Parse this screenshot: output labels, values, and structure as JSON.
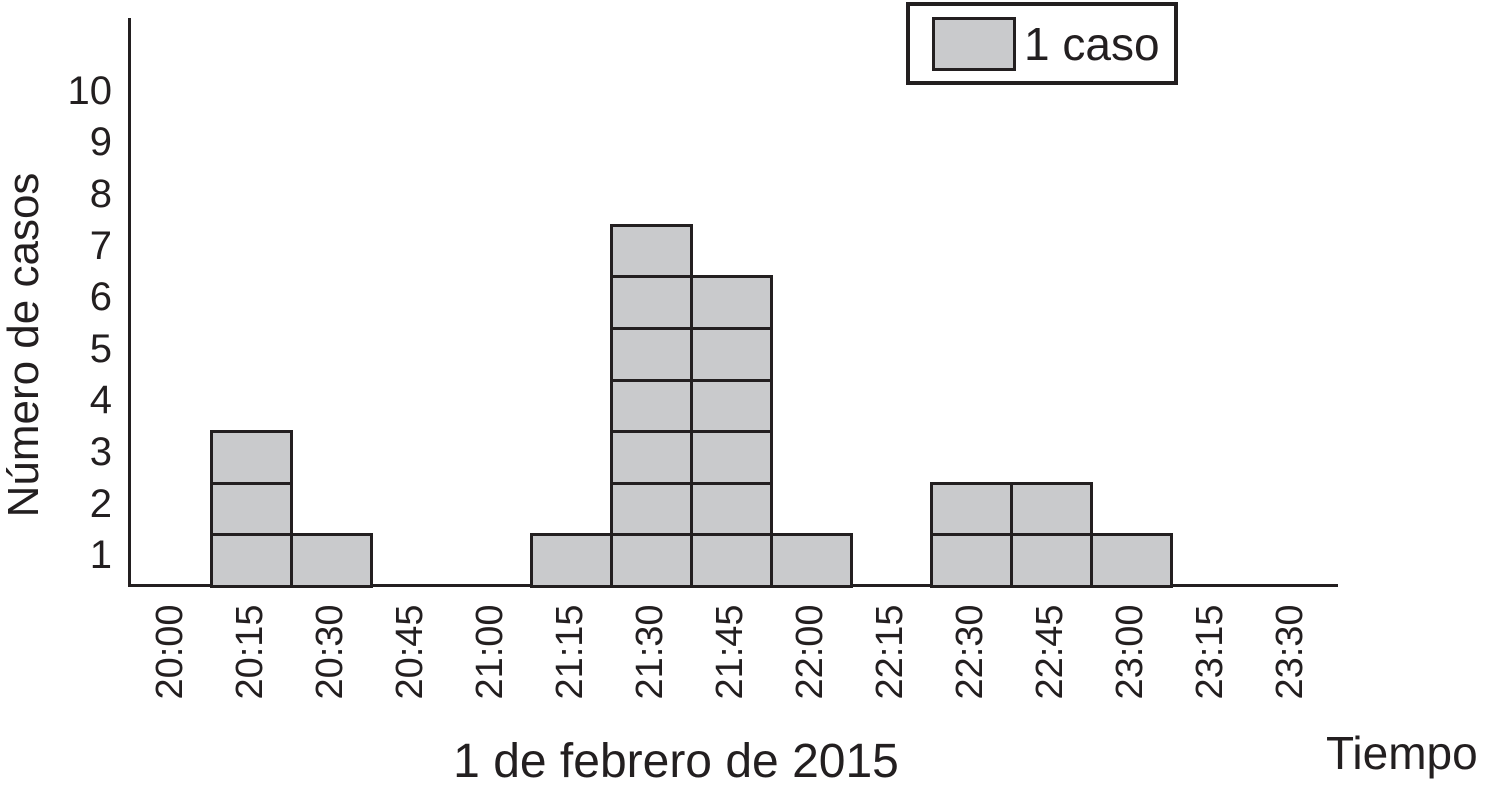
{
  "figure": {
    "y_axis_title": "Número de casos",
    "date_label": "1 de febrero de 2015",
    "time_axis_title": "Tiempo",
    "legend_label": "1 caso"
  },
  "colors": {
    "box_fill": "#c9cacc",
    "line": "#231f20",
    "background": "#ffffff"
  },
  "chart_data": {
    "type": "bar",
    "subtype": "epidemic-curve-unit-boxes",
    "title": "",
    "categories": [
      "20:00",
      "20:15",
      "20:30",
      "20:45",
      "21:00",
      "21:15",
      "21:30",
      "21:45",
      "22:00",
      "22:15",
      "22:30",
      "22:45",
      "23:00",
      "23:15",
      "23:30"
    ],
    "values": [
      0,
      3,
      1,
      0,
      0,
      1,
      7,
      6,
      1,
      0,
      2,
      2,
      1,
      0,
      0
    ],
    "unit_per_box": 1,
    "xlabel": "Tiempo",
    "x_sub_label": "1 de febrero de 2015",
    "ylabel": "Número de casos",
    "ylim": [
      0,
      11
    ],
    "yticks": [
      1,
      2,
      3,
      4,
      5,
      6,
      7,
      8,
      9,
      10
    ],
    "x_tick_rotation_deg": -90,
    "grid": false,
    "legend": [
      {
        "label": "1 caso",
        "swatch_fill": "#c9cacc"
      }
    ],
    "legend_position": "top-right"
  }
}
